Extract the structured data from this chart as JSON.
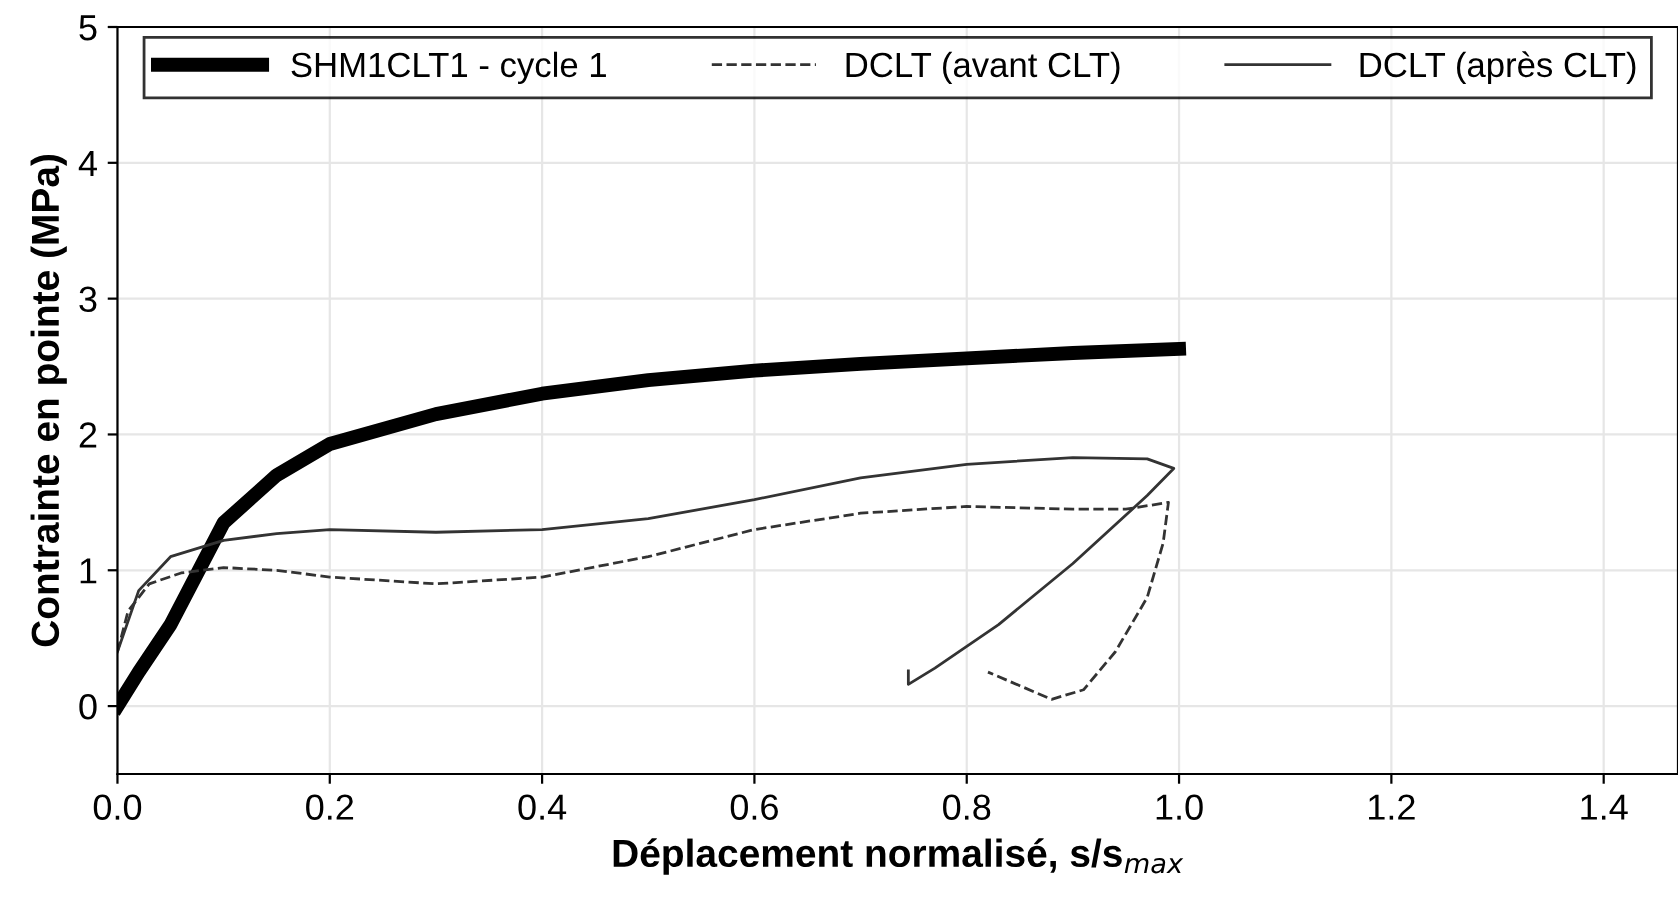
{
  "chart_data": {
    "type": "line",
    "xlabel": "Déplacement normalisé, s/s$_{max}$",
    "ylabel": "Contrainte en pointe (MPa)",
    "xlim": [
      0,
      1.47
    ],
    "ylim": [
      -0.5,
      5
    ],
    "xticks": [
      {
        "value": 0,
        "label": "0.0"
      },
      0.2,
      0.4,
      0.6,
      0.8,
      {
        "value": 1,
        "label": "1.0"
      },
      1.2,
      1.4
    ],
    "yticks": [
      0,
      1,
      2,
      3,
      4,
      5
    ],
    "grid": true,
    "legend": "top",
    "marker": "none",
    "series": [
      {
        "name": "SHM1CLT1 - cycle 1",
        "color": "#000000",
        "line_style": "solid",
        "x": [
          0,
          0.02,
          0.05,
          0.1,
          0.15,
          0.2,
          0.3,
          0.4,
          0.5,
          0.6,
          0.7,
          0.8,
          0.9,
          1.0
        ],
        "values": [
          0,
          0.25,
          0.6,
          1.35,
          1.7,
          1.93,
          2.15,
          2.3,
          2.4,
          2.47,
          2.52,
          2.56,
          2.6,
          2.63
        ]
      },
      {
        "name": "DCLT (avant CLT)",
        "color": "#333333",
        "line_style": "dashed",
        "x": [
          0,
          0.01,
          0.03,
          0.06,
          0.1,
          0.15,
          0.2,
          0.3,
          0.4,
          0.5,
          0.6,
          0.7,
          0.8,
          0.9,
          0.95,
          0.99,
          0.985,
          0.97,
          0.94,
          0.91,
          0.88,
          0.85,
          0.82
        ],
        "values": [
          0.4,
          0.7,
          0.9,
          0.98,
          1.02,
          1.0,
          0.95,
          0.9,
          0.95,
          1.1,
          1.3,
          1.42,
          1.47,
          1.45,
          1.45,
          1.5,
          1.2,
          0.8,
          0.4,
          0.12,
          0.05,
          0.15,
          0.25
        ]
      },
      {
        "name": "DCLT (après CLT)",
        "color": "#333333",
        "line_style": "solid",
        "x": [
          0,
          0.02,
          0.05,
          0.1,
          0.15,
          0.2,
          0.3,
          0.4,
          0.5,
          0.6,
          0.7,
          0.8,
          0.9,
          0.97,
          0.995,
          0.97,
          0.9,
          0.83,
          0.77,
          0.745,
          0.745
        ],
        "values": [
          0.4,
          0.85,
          1.1,
          1.22,
          1.27,
          1.3,
          1.28,
          1.3,
          1.38,
          1.52,
          1.68,
          1.78,
          1.83,
          1.82,
          1.75,
          1.55,
          1.05,
          0.6,
          0.28,
          0.16,
          0.26
        ]
      }
    ]
  }
}
